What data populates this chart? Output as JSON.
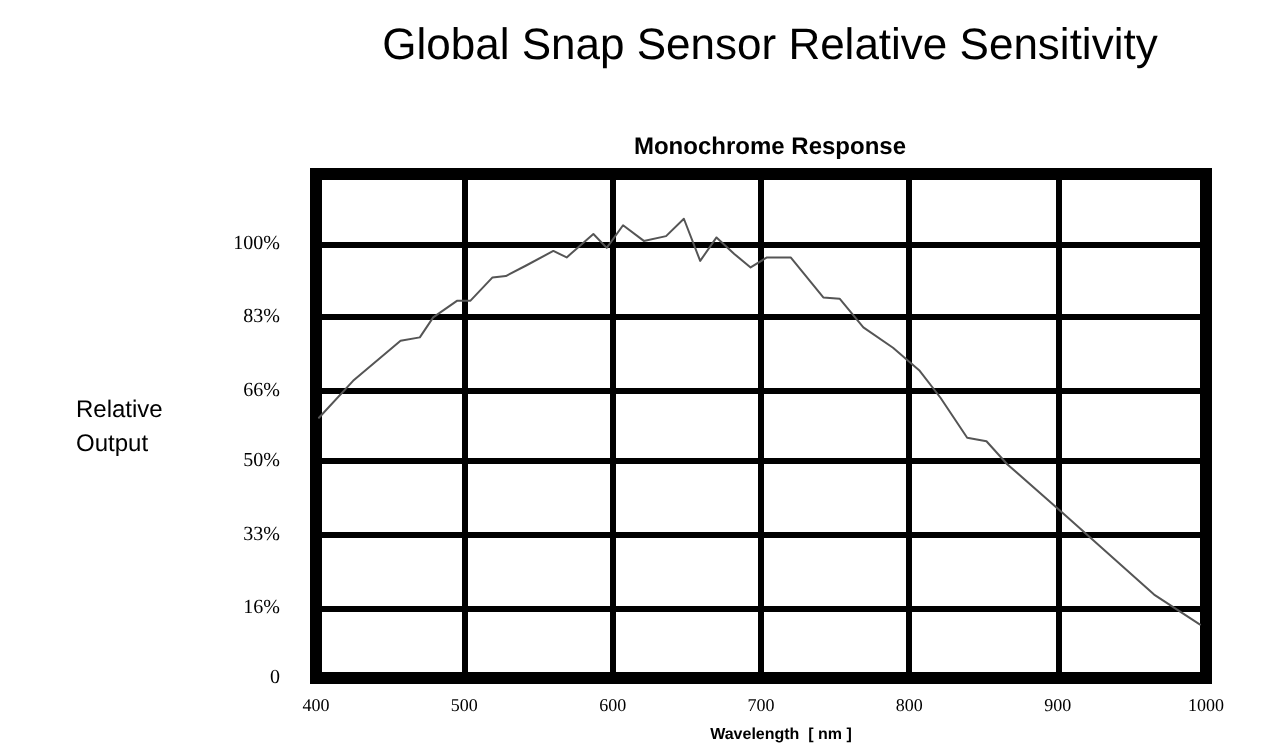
{
  "chart_data": {
    "type": "line",
    "title": "Global Snap Sensor Relative Sensitivity",
    "subtitle": "Monochrome Response",
    "xlabel": "Wavelength  [ nm ]",
    "ylabel": "Relative\nOutput",
    "x": [
      402,
      425,
      457,
      470,
      479,
      495,
      504,
      519,
      528,
      542,
      560,
      569,
      587,
      596,
      607,
      621,
      636,
      648,
      659,
      670,
      682,
      693,
      704,
      720,
      742,
      753,
      769,
      789,
      807,
      821,
      839,
      852,
      866,
      907,
      965,
      996
    ],
    "series": [
      {
        "color": "#555555",
        "values": [
          59.9,
          68.4,
          77.6,
          78.4,
          83,
          86.8,
          86.8,
          92.2,
          92.5,
          95,
          98.3,
          96.8,
          102.2,
          99,
          104.2,
          100.6,
          101.7,
          105.7,
          96,
          101.4,
          97.6,
          94.5,
          96.8,
          96.8,
          87.6,
          87.3,
          80.7,
          76,
          70.7,
          64.5,
          55.3,
          54.5,
          49.2,
          36.9,
          19.2,
          12.3
        ]
      }
    ],
    "xlim": [
      400,
      1000
    ],
    "xticks": [
      400,
      500,
      600,
      700,
      800,
      900,
      1000
    ],
    "ylim": [
      0,
      116
    ],
    "yticks": [
      0,
      {
        "value": 16,
        "label": "16%"
      },
      {
        "value": 33,
        "label": "33%"
      },
      {
        "value": 50,
        "label": "50%"
      },
      {
        "value": 66,
        "label": "66%"
      },
      {
        "value": 83,
        "label": "83%"
      },
      {
        "value": 100,
        "label": "100%"
      }
    ],
    "grid": true,
    "marker": "none",
    "line_style": "solid"
  }
}
